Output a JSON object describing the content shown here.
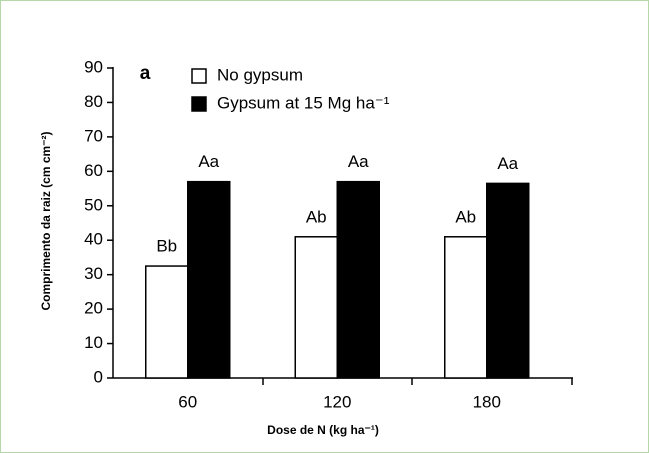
{
  "chart_data": {
    "type": "bar",
    "panel_label": "a",
    "x_label": "Dose de N (kg ha⁻¹)",
    "y_label": "Comprimento da raiz (cm cm⁻²)",
    "categories": [
      "60",
      "120",
      "180"
    ],
    "series": [
      {
        "name": "No gypsum",
        "color": "#ffffff",
        "values": [
          32.5,
          41,
          41
        ],
        "annotations": [
          "Bb",
          "Ab",
          "Ab"
        ]
      },
      {
        "name": "Gypsum at 15 Mg ha⁻¹",
        "color": "#000000",
        "values": [
          57,
          57,
          56.5
        ],
        "annotations": [
          "Aa",
          "Aa",
          "Aa"
        ]
      }
    ],
    "ylim": [
      0,
      90
    ],
    "yticks": [
      0,
      10,
      20,
      30,
      40,
      50,
      60,
      70,
      80,
      90
    ],
    "grid": false
  }
}
